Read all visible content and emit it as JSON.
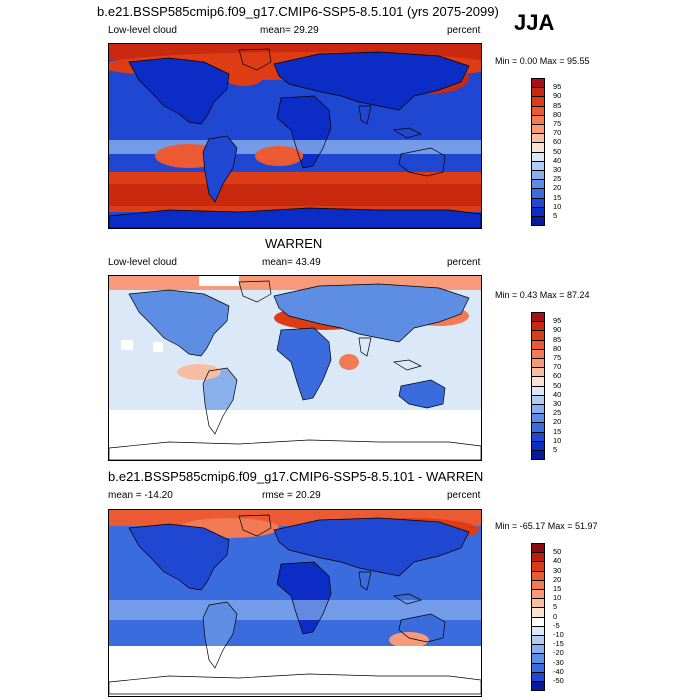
{
  "season_label": "JJA",
  "panels": [
    {
      "title": "b.e21.BSSP585cmip6.f09_g17.CMIP6-SSP5-8.5.101 (yrs 2075-2099)",
      "left_label": "Low-level cloud",
      "center_label": "mean=  29.29",
      "right_label": "percent",
      "minmax": "Min =   0.00 Max =  95.55",
      "colorbar_labels": [
        "95",
        "90",
        "85",
        "80",
        "75",
        "70",
        "60",
        "50",
        "40",
        "30",
        "25",
        "20",
        "15",
        "10",
        "5"
      ],
      "colorbar_colors": [
        "#a50f15",
        "#c8290f",
        "#de3c15",
        "#ec5a33",
        "#f27a55",
        "#f69a7a",
        "#f8bea3",
        "#fbe3d4",
        "#dbe8f7",
        "#b2cdf1",
        "#8ab0eb",
        "#5e8ee3",
        "#3b6cde",
        "#1f47d1",
        "#0b2cc5",
        "#051b9a"
      ],
      "map_kind": "model"
    },
    {
      "title": "WARREN",
      "left_label": "Low-level cloud",
      "center_label": "mean=  43.49",
      "right_label": "percent",
      "minmax": "Min =   0.43 Max =  87.24",
      "colorbar_labels": [
        "95",
        "90",
        "85",
        "80",
        "75",
        "70",
        "60",
        "50",
        "40",
        "30",
        "25",
        "20",
        "15",
        "10",
        "5"
      ],
      "colorbar_colors": [
        "#a50f15",
        "#c8290f",
        "#de3c15",
        "#ec5a33",
        "#f27a55",
        "#f69a7a",
        "#f8bea3",
        "#fbe3d4",
        "#dbe8f7",
        "#b2cdf1",
        "#8ab0eb",
        "#5e8ee3",
        "#3b6cde",
        "#1f47d1",
        "#0b2cc5",
        "#051b9a"
      ],
      "map_kind": "obs"
    },
    {
      "title": "b.e21.BSSP585cmip6.f09_g17.CMIP6-SSP5-8.5.101 - WARREN",
      "left_label": "mean = -14.20",
      "center_label": "rmse =  20.29",
      "right_label": "percent",
      "minmax": "Min = -65.17 Max =  51.97",
      "colorbar_labels": [
        "50",
        "40",
        "30",
        "20",
        "15",
        "10",
        "5",
        "0",
        "-5",
        "-10",
        "-15",
        "-20",
        "-30",
        "-40",
        "-50"
      ],
      "colorbar_colors": [
        "#8b0a0a",
        "#b81f12",
        "#d63a18",
        "#ea5a33",
        "#f27a55",
        "#f69a7a",
        "#f8bea3",
        "#fbe3d4",
        "#ffffff",
        "#dbe8f7",
        "#b2cdf1",
        "#8ab0eb",
        "#5e8ee3",
        "#3b6cde",
        "#1f47d1",
        "#051b9a"
      ],
      "map_kind": "diff"
    }
  ]
}
